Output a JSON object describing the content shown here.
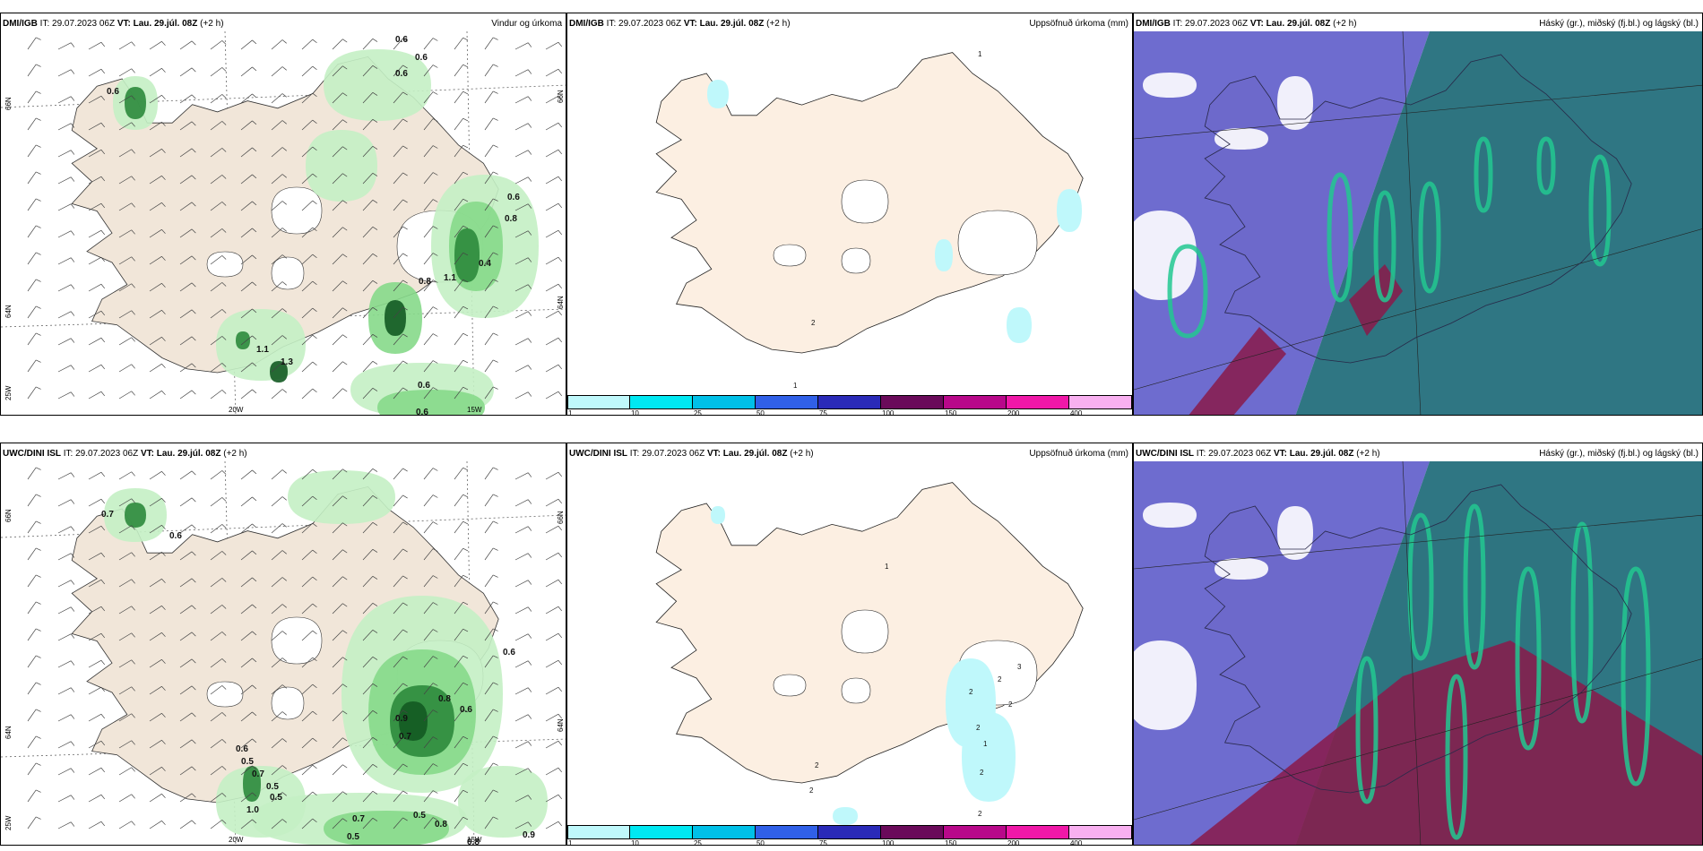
{
  "rows": [
    {
      "model": "DMI/IGB",
      "it_label": "IT:",
      "it_value": "29.07.2023 06Z",
      "vt_label": "VT:",
      "vt_value": "Lau. 29.júl. 08Z",
      "lead": "(+2 h)"
    },
    {
      "model": "UWC/DINI ISL",
      "it_label": "IT:",
      "it_value": "29.07.2023 06Z",
      "vt_label": "VT:",
      "vt_value": "Lau. 29.júl. 08Z",
      "lead": "(+2 h)"
    }
  ],
  "panel_titles": {
    "wind": "Vindur og úrkoma",
    "precip": "Uppsöfnuð úrkoma (mm)",
    "cloud": "Háský (gr.), miðský (fj.bl.) og lágský (bl.)"
  },
  "axis_labels": {
    "lat66": "66N",
    "lat64": "64N",
    "lat_s": "25W",
    "lon20": "20W",
    "lon15": "15W"
  },
  "colorbar": {
    "labels": [
      "1",
      "10",
      "25",
      "50",
      "75",
      "100",
      "150",
      "200",
      "400"
    ],
    "colors": [
      "#bff8fb",
      "#00e8f2",
      "#00c0e8",
      "#3060e8",
      "#2a2ab8",
      "#6a0a5a",
      "#b8088a",
      "#f018a8",
      "#f8b0f0"
    ]
  },
  "wind_values_top": [
    "0.6",
    "0.6",
    "0.6",
    "0.6",
    "0.6",
    "0.8",
    "0.8",
    "1.1",
    "0.4",
    "1.1",
    "1.3",
    "0.6",
    "0.6"
  ],
  "wind_values_bottom": [
    "0.7",
    "0.6",
    "0.6",
    "0.8",
    "0.6",
    "0.9",
    "0.7",
    "0.6",
    "0.5",
    "0.7",
    "0.5",
    "0.5",
    "1.0",
    "0.7",
    "0.5",
    "0.8",
    "0.5",
    "0.8",
    "0.9"
  ],
  "precip_values_top": [
    "1",
    "2",
    "1"
  ],
  "precip_values_bottom": [
    "1",
    "2",
    "2",
    "3",
    "2",
    "2",
    "2",
    "2",
    "1",
    "2",
    "2"
  ],
  "colors": {
    "land": "#f1e6d9",
    "land_precip": "#fcefe2",
    "rain_light": "#c4efc4",
    "rain_mid": "#86d98a",
    "rain_dark": "#2c8a3c",
    "rain_darkest": "#135a22",
    "precip_cyan": "#bff8fb",
    "cloud_high": "#5a58c8",
    "cloud_mid": "#1d6a78",
    "cloud_low": "#22c890",
    "cloud_maroon": "#8a1a4a"
  }
}
